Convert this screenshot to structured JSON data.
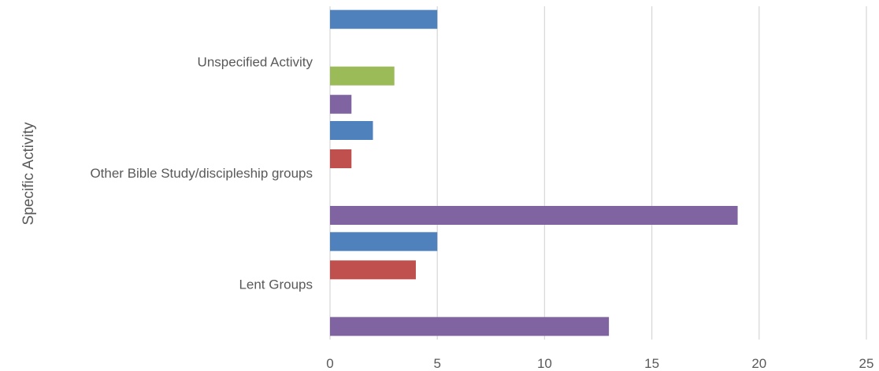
{
  "chart_data": {
    "type": "bar",
    "orientation": "horizontal",
    "title": "",
    "xlabel": "",
    "ylabel": "Specific Activity",
    "xlim": [
      0,
      25
    ],
    "x_ticks": [
      "0",
      "5",
      "10",
      "15",
      "20",
      "25"
    ],
    "grid": true,
    "legend": "none",
    "categories": [
      "Unspecified Activity",
      "Other Bible Study/discipleship groups",
      "Lent Groups"
    ],
    "series": [
      {
        "color": "#4f81bd",
        "values": [
          5,
          2,
          5
        ]
      },
      {
        "color": "#c0504d",
        "values": [
          0,
          1,
          4
        ]
      },
      {
        "color": "#9bbb59",
        "values": [
          3,
          0,
          0
        ]
      },
      {
        "color": "#8064a2",
        "values": [
          1,
          19,
          13
        ]
      }
    ]
  }
}
